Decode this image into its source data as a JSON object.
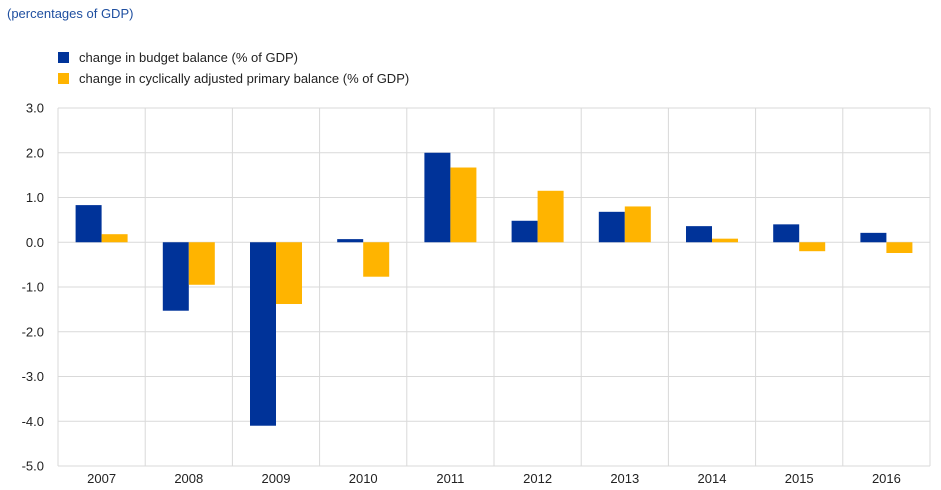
{
  "chart_data": {
    "type": "bar",
    "subtitle": "(percentages of GDP)",
    "categories": [
      "2007",
      "2008",
      "2009",
      "2010",
      "2011",
      "2012",
      "2013",
      "2014",
      "2015",
      "2016"
    ],
    "series": [
      {
        "name": "change in budget balance (% of GDP)",
        "color": "#003399",
        "values": [
          0.83,
          -1.53,
          -4.1,
          0.07,
          2.0,
          0.48,
          0.68,
          0.36,
          0.4,
          0.21
        ]
      },
      {
        "name": "change in cyclically adjusted primary balance (% of GDP)",
        "color": "#FFB400",
        "values": [
          0.18,
          -0.95,
          -1.38,
          -0.77,
          1.67,
          1.15,
          0.8,
          0.08,
          -0.2,
          -0.24
        ]
      }
    ],
    "ylim": [
      -5.0,
      3.0
    ],
    "yticks": [
      "3.0",
      "2.0",
      "1.0",
      "0.0",
      "-1.0",
      "-2.0",
      "-3.0",
      "-4.0",
      "-5.0"
    ],
    "grid": true,
    "legend_position": "top-left"
  }
}
